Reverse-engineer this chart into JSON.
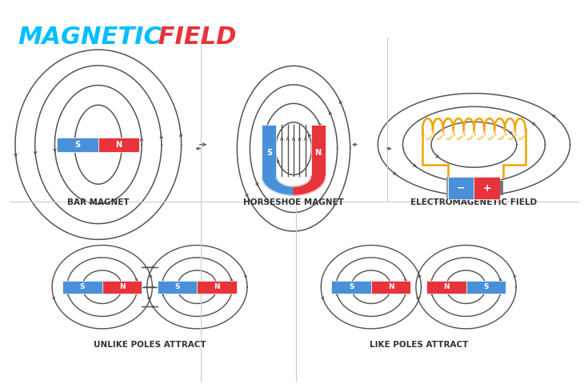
{
  "title_magnetic": "MAGNETIC",
  "title_field": " FIELD",
  "title_magnetic_color": "#00BFFF",
  "title_field_color": "#E8333A",
  "title_fontsize": 22,
  "bg_color": "#FFFFFF",
  "line_color": "#555555",
  "line_width": 1.3,
  "arrow_color": "#555555",
  "south_color": "#4A90D9",
  "north_color": "#E8333A",
  "label_fontsize": 7.5,
  "label_color": "#333333",
  "coil_color": "#F0A500",
  "labels": {
    "bar_magnet": "BAR MAGNET",
    "horseshoe": "HORSESHOE MAGNET",
    "electro": "ELECTROMAGENETIC FIELD",
    "unlike": "UNLIKE POLES ATTRACT",
    "like": "LIKE POLES ATTRACT"
  }
}
